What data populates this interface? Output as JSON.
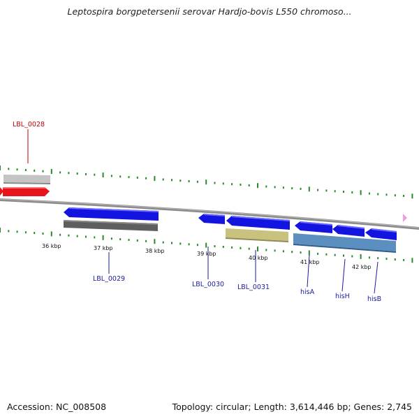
{
  "title": "Leptospira borgpetersenii serovar Hardjo-bovis L550 chromoso...",
  "footer": {
    "accession": "Accession: NC_008508",
    "summary": "Topology: circular; Length: 3,614,446 bp; Genes: 2,745"
  },
  "colors": {
    "forward_gene": "#e8141c",
    "reverse_gene": "#1414e0",
    "tick": "#2a8a2a",
    "backbone": "#8c8c8c",
    "label_forward": "#c00000",
    "label_reverse": "#1a1aa0",
    "cds_grey_light": "#c4c4c4",
    "cds_grey_dark": "#5e5e5e",
    "cds_olive": "#c9c27e",
    "cds_steel": "#5b8fc0",
    "marker_pink": "#f0a0d8"
  },
  "kbp_ticks": [
    "36 kbp",
    "37 kbp",
    "38 kbp",
    "39 kbp",
    "40 kbp",
    "41 kbp",
    "42 kbp"
  ],
  "genes": [
    {
      "label": "LBL_0028",
      "strand": "+"
    },
    {
      "label": "LBL_0029",
      "strand": "-"
    },
    {
      "label": "LBL_0030",
      "strand": "-"
    },
    {
      "label": "LBL_0031",
      "strand": "-"
    },
    {
      "label": "hisA",
      "strand": "-"
    },
    {
      "label": "hisH",
      "strand": "-"
    },
    {
      "label": "hisB",
      "strand": "-"
    }
  ]
}
